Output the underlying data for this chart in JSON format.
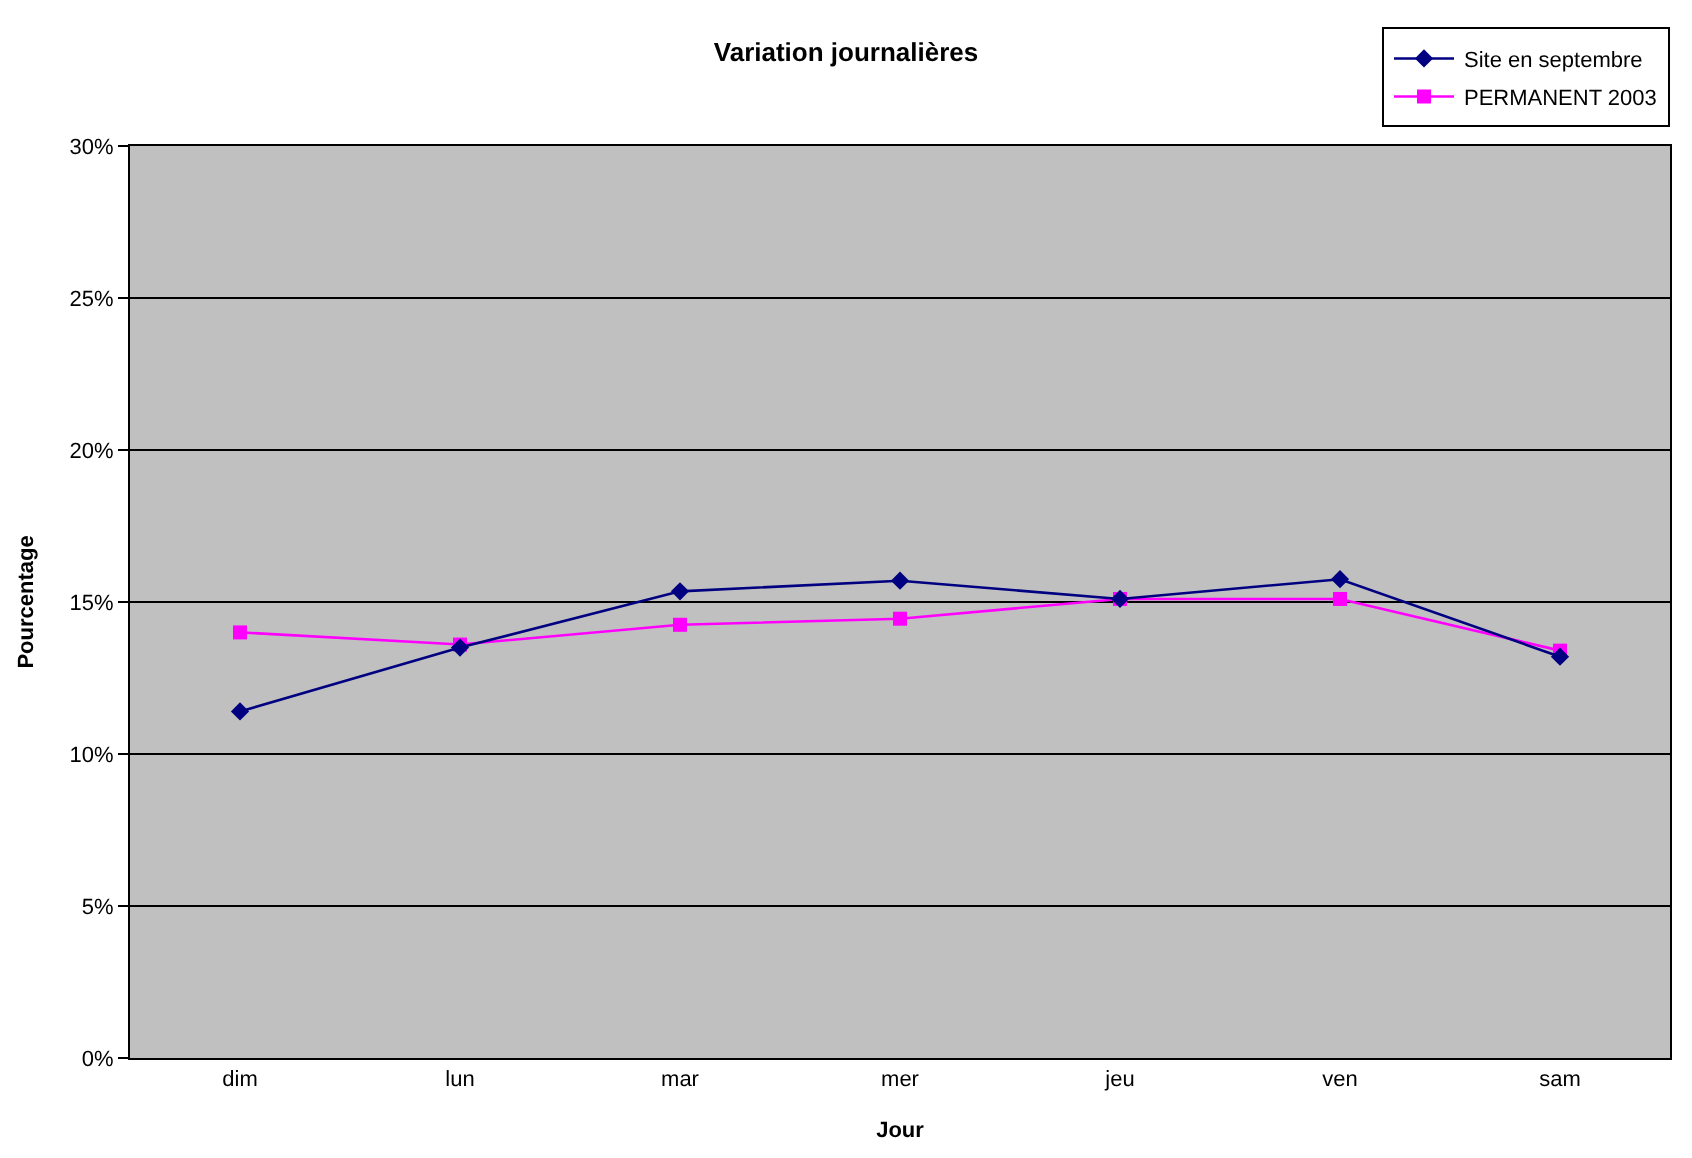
{
  "chart_data": {
    "type": "line",
    "title": "Variation journalières",
    "xlabel": "Jour",
    "ylabel": "Pourcentage",
    "categories": [
      "dim",
      "lun",
      "mar",
      "mer",
      "jeu",
      "ven",
      "sam"
    ],
    "series": [
      {
        "name": "Site en septembre",
        "color": "#000080",
        "marker": "diamond",
        "values": [
          11.4,
          13.5,
          15.35,
          15.7,
          15.1,
          15.75,
          13.2
        ]
      },
      {
        "name": "PERMANENT 2003",
        "color": "#ff00ff",
        "marker": "square",
        "values": [
          14.0,
          13.6,
          14.25,
          14.45,
          15.1,
          15.1,
          13.4
        ]
      }
    ],
    "ylim": [
      0,
      30
    ],
    "yticks": [
      {
        "value": 0,
        "label": "0%"
      },
      {
        "value": 5,
        "label": "5%"
      },
      {
        "value": 10,
        "label": "10%"
      },
      {
        "value": 15,
        "label": "15%"
      },
      {
        "value": 20,
        "label": "20%"
      },
      {
        "value": 25,
        "label": "25%"
      },
      {
        "value": 30,
        "label": "30%"
      }
    ],
    "grid": "y",
    "legend": "top right"
  }
}
